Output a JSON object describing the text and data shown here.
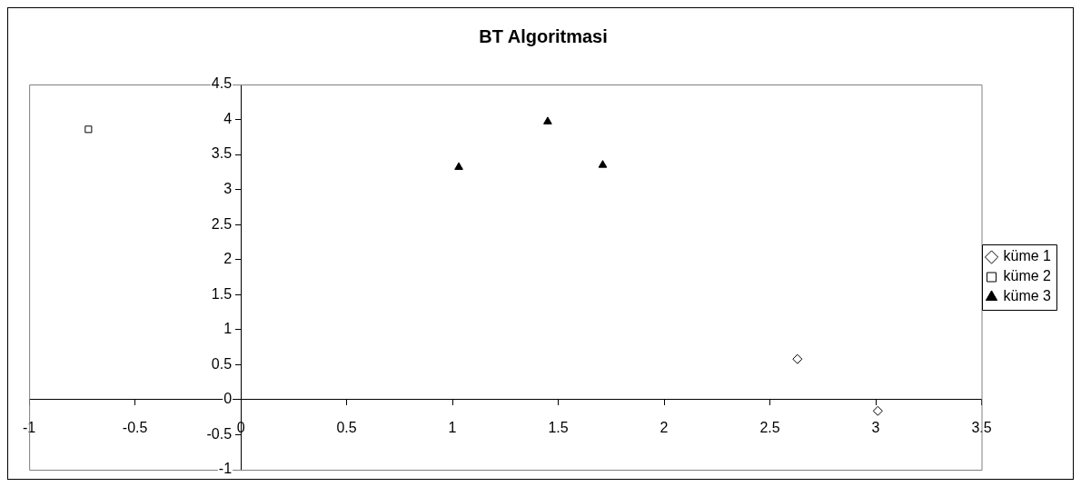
{
  "chart_data": {
    "type": "scatter",
    "title": "BT Algoritmasi",
    "series": [
      {
        "name": "küme 1",
        "color": "#000000",
        "marker": "diamond",
        "x": [
          2.63,
          3.01
        ],
        "values": [
          0.58,
          -0.16
        ]
      },
      {
        "name": "küme 2",
        "color": "#000000",
        "marker": "square",
        "x": [
          -0.72
        ],
        "values": [
          3.86
        ]
      },
      {
        "name": "küme 3",
        "color": "#000000",
        "marker": "triangle",
        "x": [
          1.03,
          1.45,
          1.71
        ],
        "values": [
          3.32,
          3.97,
          3.35
        ]
      }
    ],
    "xlim": [
      -1,
      3.5
    ],
    "xticks": [
      -1,
      -0.5,
      0,
      0.5,
      1,
      1.5,
      2,
      2.5,
      3,
      3.5
    ],
    "ylim": [
      -1,
      4.5
    ],
    "yticks": [
      -1,
      -0.5,
      0,
      0.5,
      1,
      1.5,
      2,
      2.5,
      3,
      3.5,
      4,
      4.5
    ],
    "grid": false,
    "legend": "right"
  }
}
